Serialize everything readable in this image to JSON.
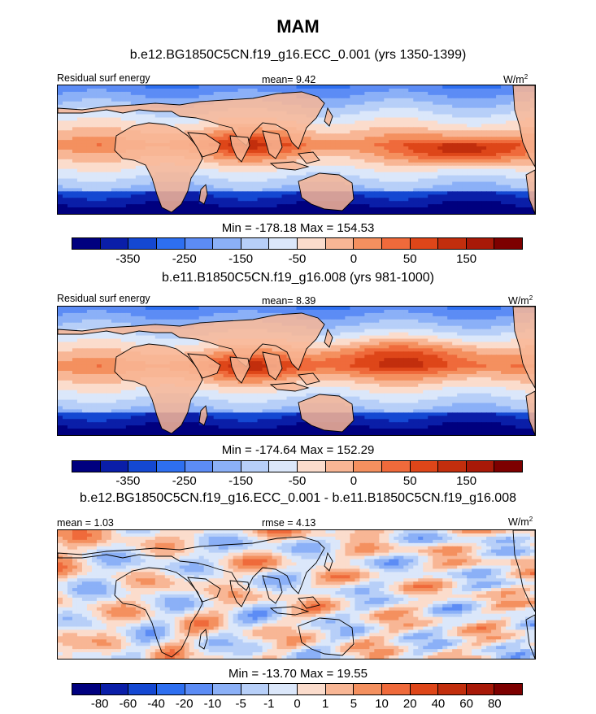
{
  "title": "MAM",
  "colors": {
    "abs": [
      "#00007f",
      "#0a1ea8",
      "#1448d2",
      "#2e6ff0",
      "#5c8cf5",
      "#8bb0f7",
      "#b7cff8",
      "#dbe7fa",
      "#fbdccc",
      "#f8b695",
      "#f4905f",
      "#ef6a3b",
      "#de4619",
      "#c22e0d",
      "#a81908",
      "#7d0000"
    ],
    "diff": [
      "#00007f",
      "#0a1ea8",
      "#1448d2",
      "#2e6ff0",
      "#5c8cf5",
      "#8bb0f7",
      "#b7cff8",
      "#dbe7fa",
      "#fbdccc",
      "#f8b695",
      "#f4905f",
      "#ef6a3b",
      "#de4619",
      "#c22e0d",
      "#a81908",
      "#7d0000"
    ]
  },
  "panels": [
    {
      "case_title": "b.e12.BG1850C5CN.f19_g16.ECC_0.001 (yrs 1350-1399)",
      "left_label": "Residual surf energy",
      "center_label": "mean=   9.42",
      "units_base": "W/m",
      "units_exp": "2",
      "min_max": "Min = -178.18 Max = 154.53",
      "ticks": [
        "-350",
        "-250",
        "-150",
        "-50",
        "0",
        "50",
        "150"
      ],
      "field": "abs1"
    },
    {
      "case_title": "b.e11.B1850C5CN.f19_g16.008 (yrs 981-1000)",
      "left_label": "Residual surf energy",
      "center_label": "mean=   8.39",
      "units_base": "W/m",
      "units_exp": "2",
      "min_max": "Min = -174.64 Max = 152.29",
      "ticks": [
        "-350",
        "-250",
        "-150",
        "-50",
        "0",
        "50",
        "150"
      ],
      "field": "abs2"
    },
    {
      "case_title": "b.e12.BG1850C5CN.f19_g16.ECC_0.001 - b.e11.B1850C5CN.f19_g16.008",
      "left_label": "mean =   1.03",
      "center_label": "rmse =   4.13",
      "units_base": "W/m",
      "units_exp": "2",
      "min_max": "Min = -13.70 Max =  19.55",
      "ticks": [
        "-80",
        "-60",
        "-40",
        "-20",
        "-10",
        "-5",
        "-1",
        "0",
        "1",
        "5",
        "10",
        "20",
        "40",
        "60",
        "80"
      ],
      "field": "diff"
    }
  ]
}
